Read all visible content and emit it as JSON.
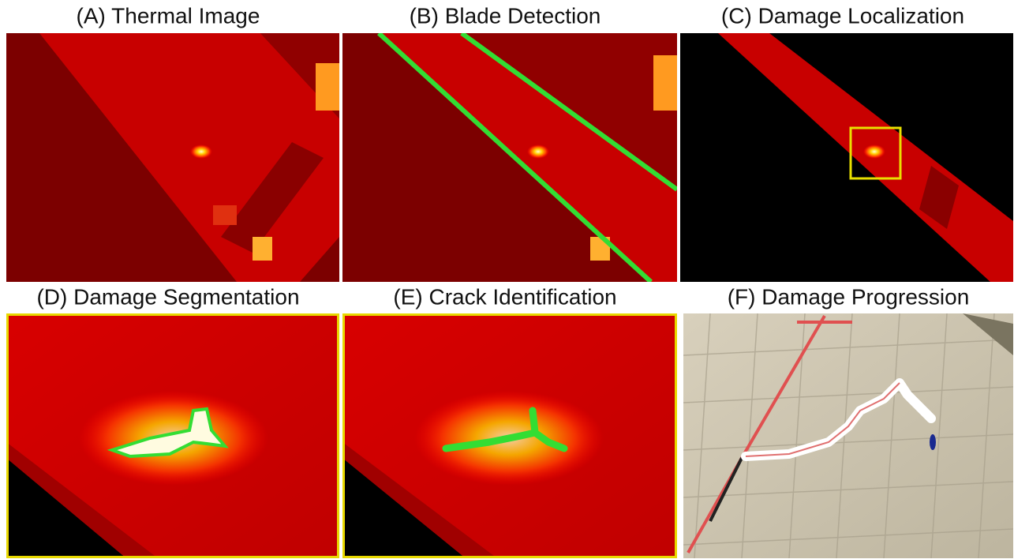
{
  "panels": [
    {
      "title": "(A) Thermal Image"
    },
    {
      "title": "(B) Blade Detection"
    },
    {
      "title": "(C) Damage Localization"
    },
    {
      "title": "(D) Damage Segmentation"
    },
    {
      "title": "(E) Crack Identification"
    },
    {
      "title": "(F) Damage Progression"
    }
  ]
}
